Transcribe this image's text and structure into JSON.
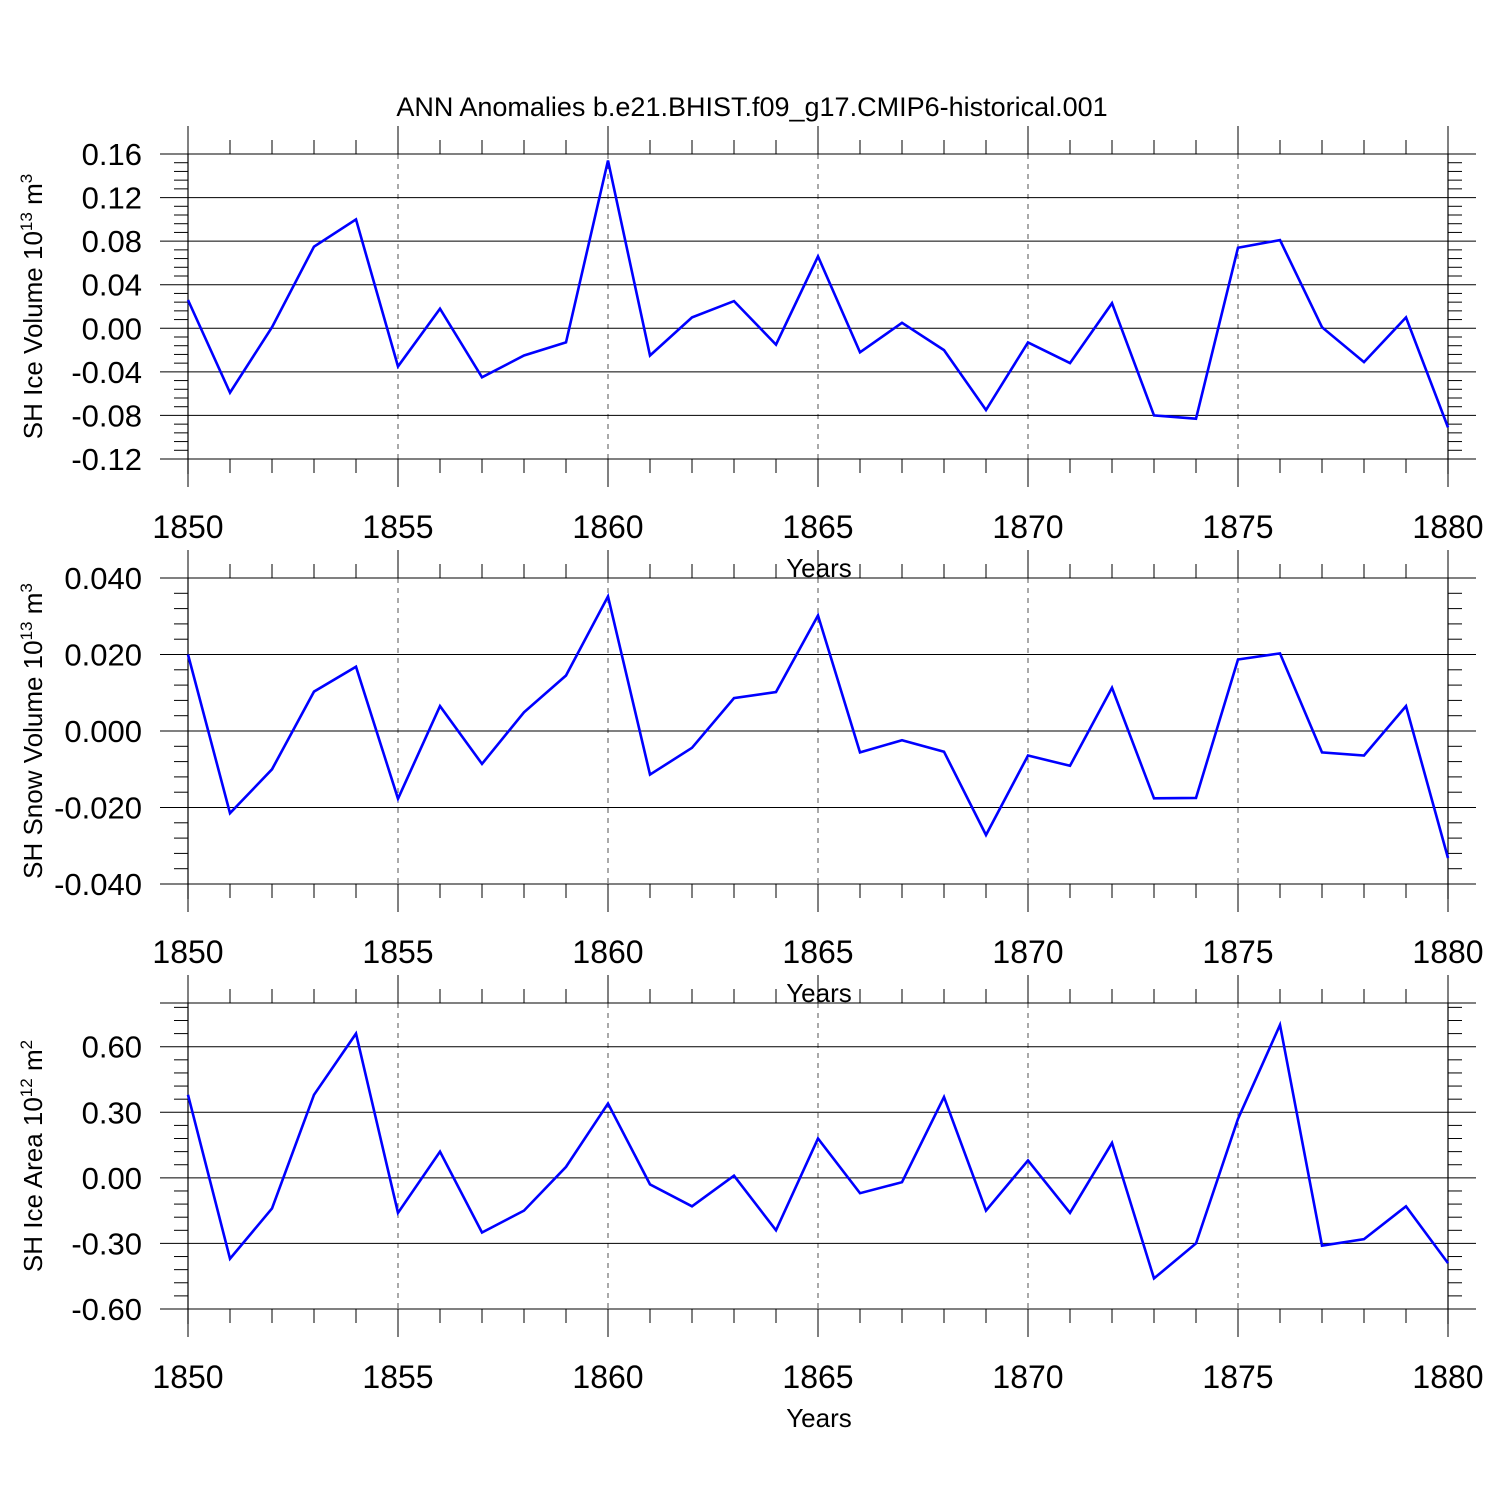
{
  "title": "ANN Anomalies b.e21.BHIST.f09_g17.CMIP6-historical.001",
  "colors": {
    "line": "#0000ff",
    "axis": "#000000",
    "grid": "#000000"
  },
  "chart_data": [
    {
      "type": "line",
      "ylabel": "SH Ice Volume 10",
      "ylabel_exp": "13",
      "ylabel_unit": " m",
      "ylabel_unit_exp": "3",
      "xlabel": "Years",
      "xlim": [
        1850,
        1880
      ],
      "ylim": [
        -0.12,
        0.16
      ],
      "top_line": 0.16,
      "yticks": [
        -0.12,
        -0.08,
        -0.04,
        0.0,
        0.04,
        0.08,
        0.12,
        0.16
      ],
      "ytick_labels": [
        "-0.12",
        "-0.08",
        "-0.04",
        "0.00",
        "0.04",
        "0.08",
        "0.12",
        "0.16"
      ],
      "xticks": [
        1850,
        1855,
        1860,
        1865,
        1870,
        1875,
        1880
      ],
      "xtick_labels": [
        "1850",
        "1855",
        "1860",
        "1865",
        "1870",
        "1875",
        "1880"
      ],
      "x": [
        1850,
        1851,
        1852,
        1853,
        1854,
        1855,
        1856,
        1857,
        1858,
        1859,
        1860,
        1861,
        1862,
        1863,
        1864,
        1865,
        1866,
        1867,
        1868,
        1869,
        1870,
        1871,
        1872,
        1873,
        1874,
        1875,
        1876,
        1877,
        1878,
        1879,
        1880
      ],
      "series": [
        {
          "values": [
            0.026,
            -0.059,
            0.001,
            0.075,
            0.1,
            -0.035,
            0.018,
            -0.045,
            -0.025,
            -0.013,
            0.154,
            -0.025,
            0.01,
            0.025,
            -0.015,
            0.066,
            -0.022,
            0.005,
            -0.02,
            -0.075,
            -0.013,
            -0.032,
            0.023,
            -0.08,
            -0.083,
            0.074,
            0.081,
            0.001,
            -0.031,
            0.01,
            -0.091
          ]
        }
      ]
    },
    {
      "type": "line",
      "ylabel": "SH Snow Volume 10",
      "ylabel_exp": "13",
      "ylabel_unit": " m",
      "ylabel_unit_exp": "3",
      "xlabel": "Years",
      "xlim": [
        1850,
        1880
      ],
      "ylim": [
        -0.04,
        0.04
      ],
      "top_line": 0.04,
      "yticks": [
        -0.04,
        -0.02,
        0.0,
        0.02,
        0.04
      ],
      "ytick_labels": [
        "-0.040",
        "-0.020",
        "0.000",
        "0.020",
        "0.040"
      ],
      "xticks": [
        1850,
        1855,
        1860,
        1865,
        1870,
        1875,
        1880
      ],
      "xtick_labels": [
        "1850",
        "1855",
        "1860",
        "1865",
        "1870",
        "1875",
        "1880"
      ],
      "x": [
        1850,
        1851,
        1852,
        1853,
        1854,
        1855,
        1856,
        1857,
        1858,
        1859,
        1860,
        1861,
        1862,
        1863,
        1864,
        1865,
        1866,
        1867,
        1868,
        1869,
        1870,
        1871,
        1872,
        1873,
        1874,
        1875,
        1876,
        1877,
        1878,
        1879,
        1880
      ],
      "series": [
        {
          "values": [
            0.02,
            -0.0215,
            -0.01,
            0.0103,
            0.0168,
            -0.0177,
            0.0065,
            -0.0086,
            0.0049,
            0.0145,
            0.0352,
            -0.0114,
            -0.0044,
            0.0086,
            0.0102,
            0.0302,
            -0.0056,
            -0.0024,
            -0.0054,
            -0.0272,
            -0.0064,
            -0.0091,
            0.0113,
            -0.0176,
            -0.0175,
            0.0187,
            0.0203,
            -0.0056,
            -0.0064,
            0.0065,
            -0.0332
          ]
        }
      ]
    },
    {
      "type": "line",
      "ylabel": "SH Ice Area 10",
      "ylabel_exp": "12",
      "ylabel_unit": " m",
      "ylabel_unit_exp": "2",
      "xlabel": "Years",
      "xlim": [
        1850,
        1880
      ],
      "ylim": [
        -0.6,
        0.8
      ],
      "top_line": 0.8,
      "yticks": [
        -0.6,
        -0.3,
        0.0,
        0.3,
        0.6
      ],
      "ytick_labels": [
        "-0.60",
        "-0.30",
        "0.00",
        "0.30",
        "0.60"
      ],
      "xticks": [
        1850,
        1855,
        1860,
        1865,
        1870,
        1875,
        1880
      ],
      "xtick_labels": [
        "1850",
        "1855",
        "1860",
        "1865",
        "1870",
        "1875",
        "1880"
      ],
      "x": [
        1850,
        1851,
        1852,
        1853,
        1854,
        1855,
        1856,
        1857,
        1858,
        1859,
        1860,
        1861,
        1862,
        1863,
        1864,
        1865,
        1866,
        1867,
        1868,
        1869,
        1870,
        1871,
        1872,
        1873,
        1874,
        1875,
        1876,
        1877,
        1878,
        1879,
        1880
      ],
      "series": [
        {
          "values": [
            0.38,
            -0.37,
            -0.14,
            0.38,
            0.66,
            -0.16,
            0.12,
            -0.25,
            -0.15,
            0.05,
            0.34,
            -0.03,
            -0.13,
            0.01,
            -0.24,
            0.18,
            -0.07,
            -0.02,
            0.37,
            -0.15,
            0.08,
            -0.16,
            0.16,
            -0.46,
            -0.3,
            0.27,
            0.7,
            -0.31,
            -0.28,
            -0.13,
            -0.39
          ]
        }
      ]
    }
  ]
}
